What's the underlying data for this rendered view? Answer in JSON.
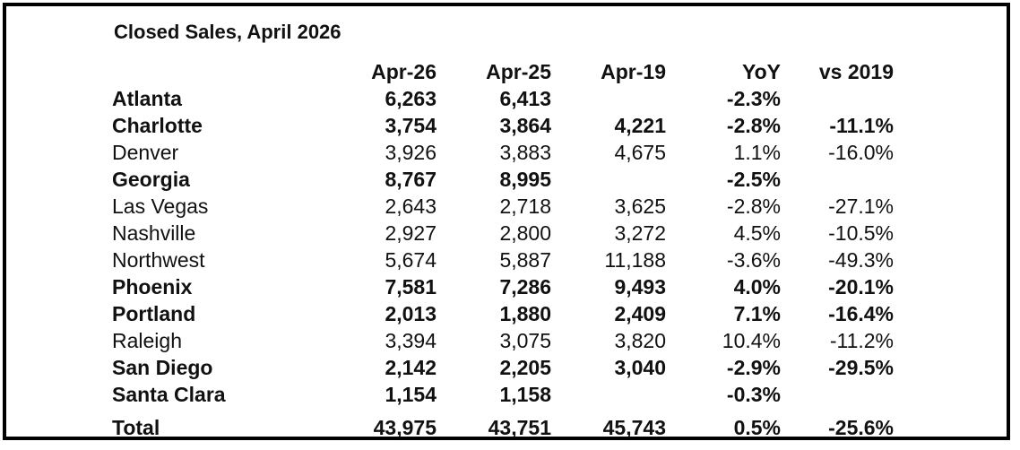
{
  "table": {
    "title": "Closed Sales, April 2026",
    "columns": [
      "Apr-26",
      "Apr-25",
      "Apr-19",
      "YoY",
      "vs 2019"
    ],
    "rows": [
      {
        "name": "Atlanta",
        "bold": true,
        "values": [
          "6,263",
          "6,413",
          "",
          "-2.3%",
          ""
        ]
      },
      {
        "name": "Charlotte",
        "bold": true,
        "values": [
          "3,754",
          "3,864",
          "4,221",
          "-2.8%",
          "-11.1%"
        ]
      },
      {
        "name": "Denver",
        "bold": false,
        "values": [
          "3,926",
          "3,883",
          "4,675",
          "1.1%",
          "-16.0%"
        ]
      },
      {
        "name": "Georgia",
        "bold": true,
        "values": [
          "8,767",
          "8,995",
          "",
          "-2.5%",
          ""
        ]
      },
      {
        "name": "Las Vegas",
        "bold": false,
        "values": [
          "2,643",
          "2,718",
          "3,625",
          "-2.8%",
          "-27.1%"
        ]
      },
      {
        "name": "Nashville",
        "bold": false,
        "values": [
          "2,927",
          "2,800",
          "3,272",
          "4.5%",
          "-10.5%"
        ]
      },
      {
        "name": "Northwest",
        "bold": false,
        "values": [
          "5,674",
          "5,887",
          "11,188",
          "-3.6%",
          "-49.3%"
        ]
      },
      {
        "name": "Phoenix",
        "bold": true,
        "values": [
          "7,581",
          "7,286",
          "9,493",
          "4.0%",
          "-20.1%"
        ]
      },
      {
        "name": "Portland",
        "bold": true,
        "values": [
          "2,013",
          "1,880",
          "2,409",
          "7.1%",
          "-16.4%"
        ]
      },
      {
        "name": "Raleigh",
        "bold": false,
        "values": [
          "3,394",
          "3,075",
          "3,820",
          "10.4%",
          "-11.2%"
        ]
      },
      {
        "name": "San Diego",
        "bold": true,
        "values": [
          "2,142",
          "2,205",
          "3,040",
          "-2.9%",
          "-29.5%"
        ]
      },
      {
        "name": "Santa Clara",
        "bold": true,
        "values": [
          "1,154",
          "1,158",
          "",
          "-0.3%",
          ""
        ]
      }
    ],
    "total": {
      "name": "Total",
      "bold": true,
      "values": [
        "43,975",
        "43,751",
        "45,743",
        "0.5%",
        "-25.6%"
      ]
    }
  }
}
